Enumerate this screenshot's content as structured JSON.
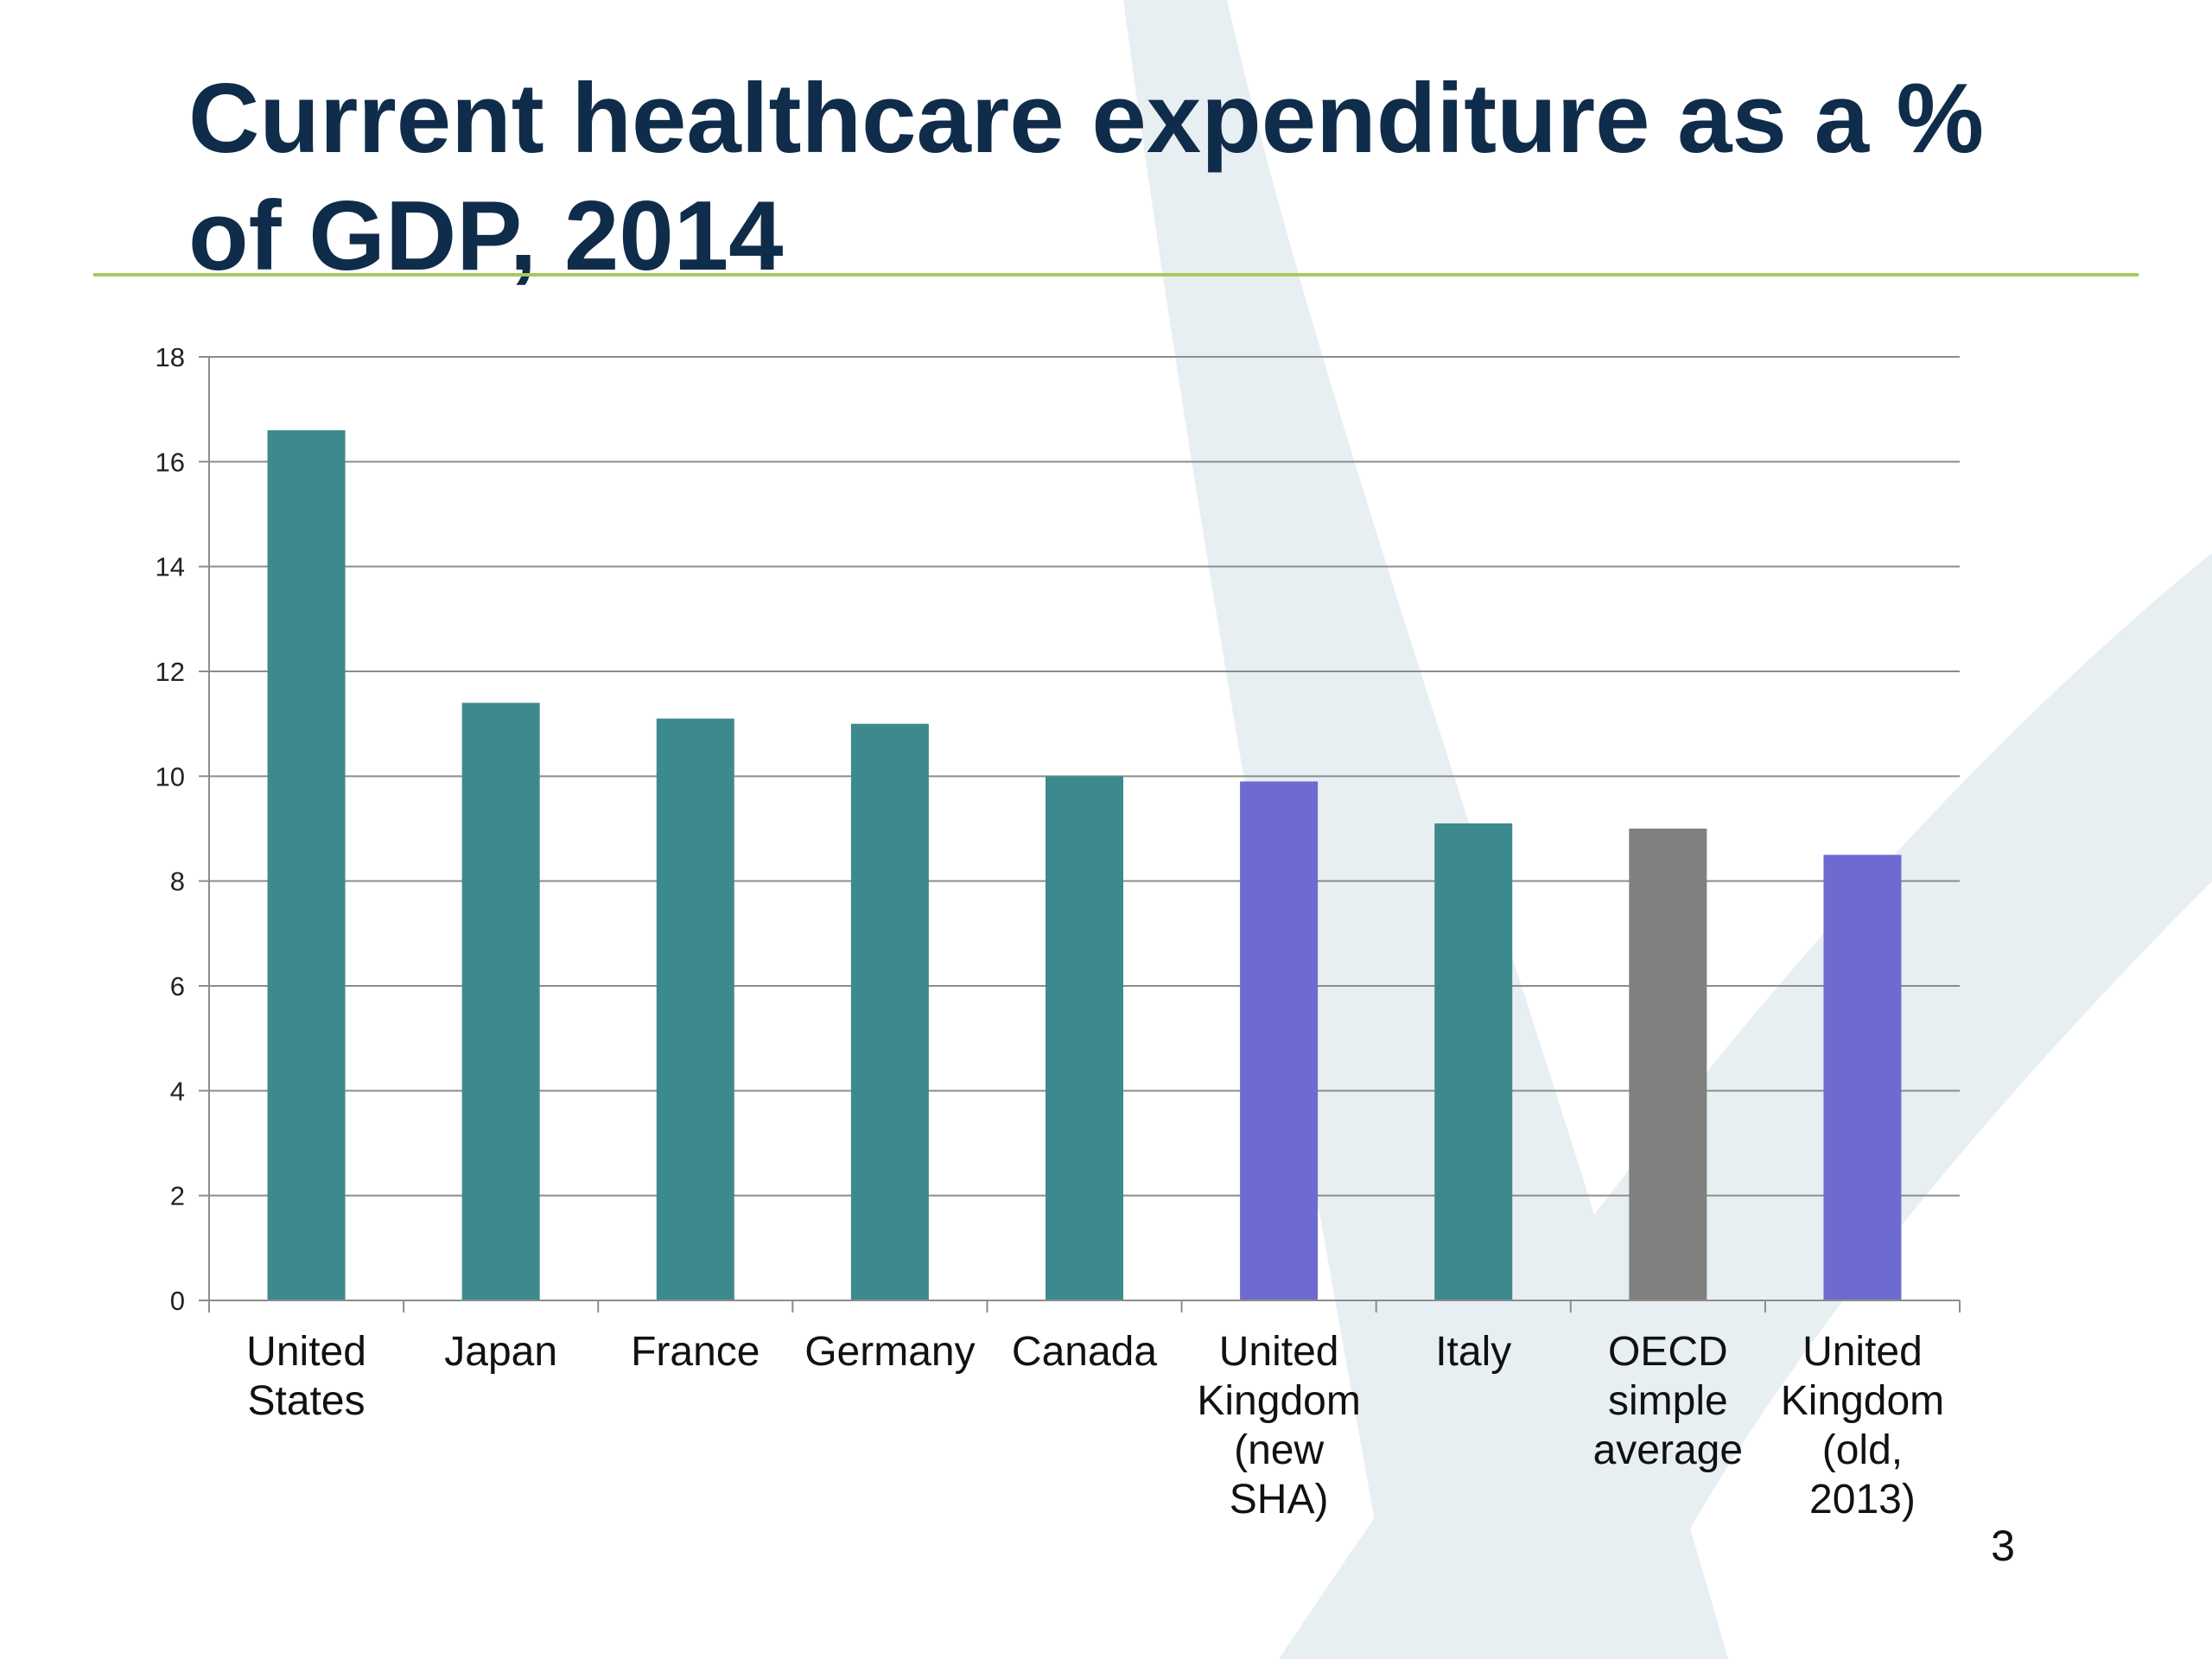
{
  "slide": {
    "title_line1": "Current healthcare expenditure as a %",
    "title_line2": "of GDP, 2014",
    "page_number": "3"
  },
  "colors": {
    "teal": "#3d8a8e",
    "purple": "#6e6bd0",
    "gray": "#808080",
    "title": "#0f2d4a",
    "rule": "#a8c860",
    "decor": "#e6eef2"
  },
  "chart_data": {
    "type": "bar",
    "title": "",
    "xlabel": "",
    "ylabel": "",
    "ylim": [
      0,
      18
    ],
    "yticks": [
      0,
      2,
      4,
      6,
      8,
      10,
      12,
      14,
      16,
      18
    ],
    "grid": true,
    "legend": "none",
    "categories": [
      [
        "United",
        "States"
      ],
      [
        "Japan"
      ],
      [
        "France"
      ],
      [
        "Germany"
      ],
      [
        "Canada"
      ],
      [
        "United",
        "Kingdom",
        "(new",
        "SHA)"
      ],
      [
        "Italy"
      ],
      [
        "OECD",
        "simple",
        "average"
      ],
      [
        "United",
        "Kingdom",
        "(old,",
        "2013)"
      ]
    ],
    "values": [
      16.6,
      11.4,
      11.1,
      11.0,
      10.0,
      9.9,
      9.1,
      9.0,
      8.5
    ],
    "bar_colors": [
      "teal",
      "teal",
      "teal",
      "teal",
      "teal",
      "purple",
      "teal",
      "gray",
      "purple"
    ]
  }
}
